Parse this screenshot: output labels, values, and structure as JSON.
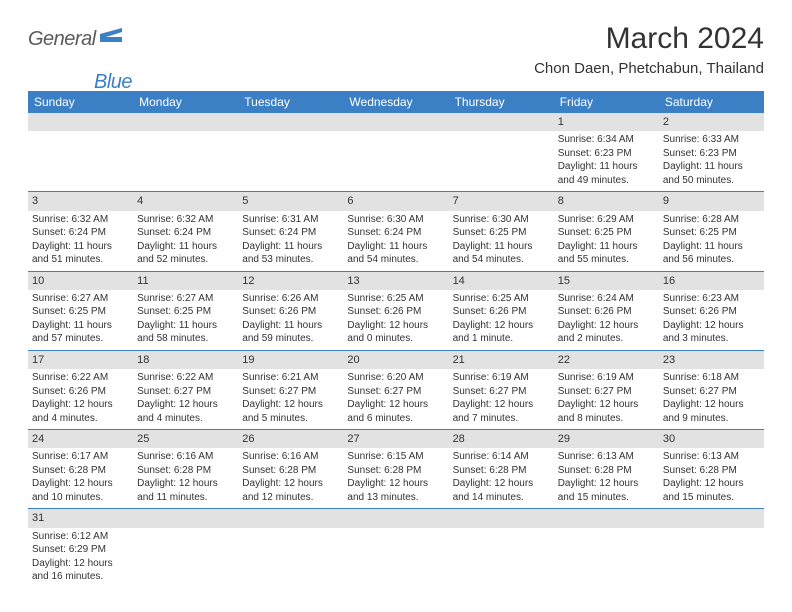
{
  "logo": {
    "text1": "General",
    "text2": "Blue"
  },
  "title": "March 2024",
  "location": "Chon Daen, Phetchabun, Thailand",
  "colors": {
    "header_bg": "#3b7fc4",
    "header_fg": "#ffffff",
    "daynum_bg": "#e2e2e2",
    "rule": "#3b7fc4",
    "text": "#333333",
    "page_bg": "#ffffff"
  },
  "typography": {
    "title_fontsize": 30,
    "location_fontsize": 15,
    "dayheader_fontsize": 12,
    "daynum_fontsize": 11,
    "daytext_fontsize": 10
  },
  "weekdays": [
    "Sunday",
    "Monday",
    "Tuesday",
    "Wednesday",
    "Thursday",
    "Friday",
    "Saturday"
  ],
  "weeks": [
    [
      null,
      null,
      null,
      null,
      null,
      {
        "n": "1",
        "sunrise": "6:34 AM",
        "sunset": "6:23 PM",
        "daylight": "11 hours and 49 minutes."
      },
      {
        "n": "2",
        "sunrise": "6:33 AM",
        "sunset": "6:23 PM",
        "daylight": "11 hours and 50 minutes."
      }
    ],
    [
      {
        "n": "3",
        "sunrise": "6:32 AM",
        "sunset": "6:24 PM",
        "daylight": "11 hours and 51 minutes."
      },
      {
        "n": "4",
        "sunrise": "6:32 AM",
        "sunset": "6:24 PM",
        "daylight": "11 hours and 52 minutes."
      },
      {
        "n": "5",
        "sunrise": "6:31 AM",
        "sunset": "6:24 PM",
        "daylight": "11 hours and 53 minutes."
      },
      {
        "n": "6",
        "sunrise": "6:30 AM",
        "sunset": "6:24 PM",
        "daylight": "11 hours and 54 minutes."
      },
      {
        "n": "7",
        "sunrise": "6:30 AM",
        "sunset": "6:25 PM",
        "daylight": "11 hours and 54 minutes."
      },
      {
        "n": "8",
        "sunrise": "6:29 AM",
        "sunset": "6:25 PM",
        "daylight": "11 hours and 55 minutes."
      },
      {
        "n": "9",
        "sunrise": "6:28 AM",
        "sunset": "6:25 PM",
        "daylight": "11 hours and 56 minutes."
      }
    ],
    [
      {
        "n": "10",
        "sunrise": "6:27 AM",
        "sunset": "6:25 PM",
        "daylight": "11 hours and 57 minutes."
      },
      {
        "n": "11",
        "sunrise": "6:27 AM",
        "sunset": "6:25 PM",
        "daylight": "11 hours and 58 minutes."
      },
      {
        "n": "12",
        "sunrise": "6:26 AM",
        "sunset": "6:26 PM",
        "daylight": "11 hours and 59 minutes."
      },
      {
        "n": "13",
        "sunrise": "6:25 AM",
        "sunset": "6:26 PM",
        "daylight": "12 hours and 0 minutes."
      },
      {
        "n": "14",
        "sunrise": "6:25 AM",
        "sunset": "6:26 PM",
        "daylight": "12 hours and 1 minute."
      },
      {
        "n": "15",
        "sunrise": "6:24 AM",
        "sunset": "6:26 PM",
        "daylight": "12 hours and 2 minutes."
      },
      {
        "n": "16",
        "sunrise": "6:23 AM",
        "sunset": "6:26 PM",
        "daylight": "12 hours and 3 minutes."
      }
    ],
    [
      {
        "n": "17",
        "sunrise": "6:22 AM",
        "sunset": "6:26 PM",
        "daylight": "12 hours and 4 minutes."
      },
      {
        "n": "18",
        "sunrise": "6:22 AM",
        "sunset": "6:27 PM",
        "daylight": "12 hours and 4 minutes."
      },
      {
        "n": "19",
        "sunrise": "6:21 AM",
        "sunset": "6:27 PM",
        "daylight": "12 hours and 5 minutes."
      },
      {
        "n": "20",
        "sunrise": "6:20 AM",
        "sunset": "6:27 PM",
        "daylight": "12 hours and 6 minutes."
      },
      {
        "n": "21",
        "sunrise": "6:19 AM",
        "sunset": "6:27 PM",
        "daylight": "12 hours and 7 minutes."
      },
      {
        "n": "22",
        "sunrise": "6:19 AM",
        "sunset": "6:27 PM",
        "daylight": "12 hours and 8 minutes."
      },
      {
        "n": "23",
        "sunrise": "6:18 AM",
        "sunset": "6:27 PM",
        "daylight": "12 hours and 9 minutes."
      }
    ],
    [
      {
        "n": "24",
        "sunrise": "6:17 AM",
        "sunset": "6:28 PM",
        "daylight": "12 hours and 10 minutes."
      },
      {
        "n": "25",
        "sunrise": "6:16 AM",
        "sunset": "6:28 PM",
        "daylight": "12 hours and 11 minutes."
      },
      {
        "n": "26",
        "sunrise": "6:16 AM",
        "sunset": "6:28 PM",
        "daylight": "12 hours and 12 minutes."
      },
      {
        "n": "27",
        "sunrise": "6:15 AM",
        "sunset": "6:28 PM",
        "daylight": "12 hours and 13 minutes."
      },
      {
        "n": "28",
        "sunrise": "6:14 AM",
        "sunset": "6:28 PM",
        "daylight": "12 hours and 14 minutes."
      },
      {
        "n": "29",
        "sunrise": "6:13 AM",
        "sunset": "6:28 PM",
        "daylight": "12 hours and 15 minutes."
      },
      {
        "n": "30",
        "sunrise": "6:13 AM",
        "sunset": "6:28 PM",
        "daylight": "12 hours and 15 minutes."
      }
    ],
    [
      {
        "n": "31",
        "sunrise": "6:12 AM",
        "sunset": "6:29 PM",
        "daylight": "12 hours and 16 minutes."
      },
      null,
      null,
      null,
      null,
      null,
      null
    ]
  ],
  "labels": {
    "sunrise": "Sunrise: ",
    "sunset": "Sunset: ",
    "daylight": "Daylight: "
  }
}
